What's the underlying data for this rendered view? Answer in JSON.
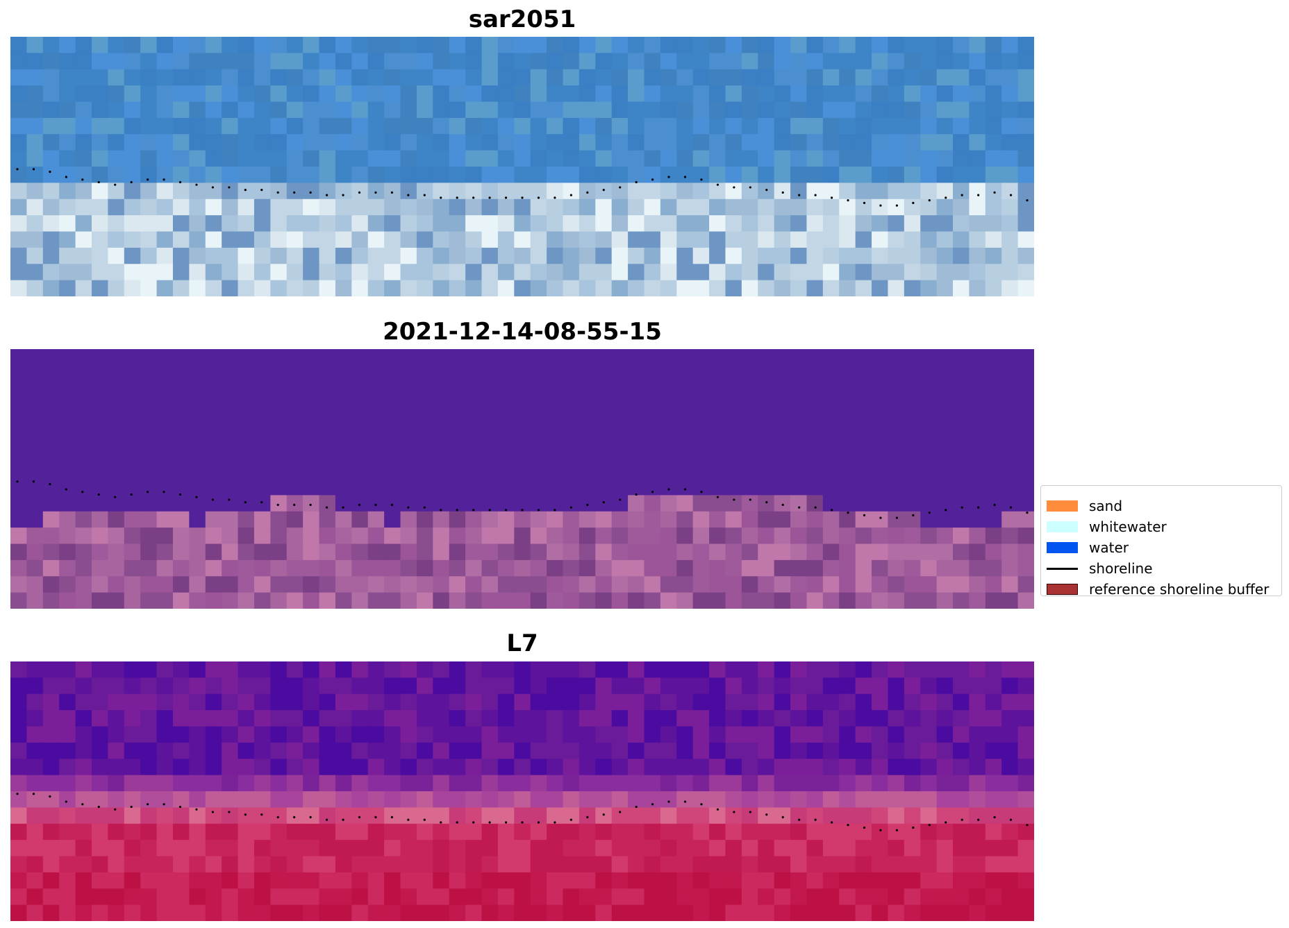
{
  "figure": {
    "panels": [
      {
        "title": "sar2051",
        "kind": "rgb"
      },
      {
        "title": "2021-12-14-08-55-15",
        "kind": "classified"
      },
      {
        "title": "L7",
        "kind": "index"
      }
    ]
  },
  "legend": {
    "items": [
      {
        "label": "sand",
        "color": "#ff8c3a",
        "kind": "patch"
      },
      {
        "label": "whitewater",
        "color": "#ccffff",
        "kind": "patch"
      },
      {
        "label": "water",
        "color": "#0055f0",
        "kind": "patch"
      },
      {
        "label": "shoreline",
        "color": "#000000",
        "kind": "line"
      },
      {
        "label": "reference shoreline buffer",
        "color": "#a83232",
        "kind": "patch"
      }
    ]
  },
  "chart_data": {
    "type": "heatmap",
    "grid_on": false,
    "axes_visible": false,
    "legend_placement": "center-right",
    "shoreline_style": "dotted",
    "shoreline_color": "#000000",
    "shoreline_y_fraction": [
      0.51,
      0.51,
      0.52,
      0.54,
      0.55,
      0.56,
      0.57,
      0.56,
      0.55,
      0.55,
      0.56,
      0.57,
      0.58,
      0.58,
      0.59,
      0.59,
      0.6,
      0.6,
      0.6,
      0.61,
      0.61,
      0.6,
      0.6,
      0.6,
      0.61,
      0.61,
      0.62,
      0.62,
      0.62,
      0.62,
      0.62,
      0.62,
      0.62,
      0.62,
      0.61,
      0.6,
      0.59,
      0.58,
      0.56,
      0.55,
      0.54,
      0.54,
      0.55,
      0.57,
      0.58,
      0.58,
      0.59,
      0.6,
      0.61,
      0.61,
      0.62,
      0.63,
      0.64,
      0.65,
      0.65,
      0.64,
      0.63,
      0.62,
      0.61,
      0.61,
      0.6,
      0.61,
      0.63
    ],
    "panels": [
      {
        "title": "sar2051",
        "colormap": "true-color",
        "land_start_fraction": 0.56,
        "water_colors": [
          "#3d85c6",
          "#4a90d9",
          "#3b7fc4",
          "#5a9ccc",
          "#4b8fd0",
          "#3f82bf"
        ],
        "land_colors": [
          "#a9c4dd",
          "#c3d6e6",
          "#8aaed0",
          "#dbe8f0",
          "#e8f4f8",
          "#9fbbd6",
          "#b7cfe1",
          "#6e96c4"
        ]
      },
      {
        "title": "2021-12-14-08-55-15",
        "colormap": "classification",
        "water_color": "#53229a",
        "land_step_rows": [
          11,
          11,
          10,
          10,
          10,
          10,
          10,
          10,
          10,
          10,
          10,
          11,
          10,
          10,
          10,
          10,
          9,
          9,
          9,
          9,
          10,
          10,
          10,
          11,
          10,
          10,
          10,
          10,
          10,
          10,
          10,
          10,
          10,
          10,
          10,
          10,
          10,
          10,
          9,
          9,
          9,
          9,
          9,
          9,
          9,
          9,
          9,
          9,
          9,
          9,
          10,
          10,
          10,
          10,
          10,
          10,
          11,
          11,
          11,
          11,
          11,
          10,
          10
        ],
        "land_colors": [
          "#8a4d90",
          "#9b5598",
          "#a8649f",
          "#b16ea5",
          "#7b3f86",
          "#c077a9",
          "#9f5a9b"
        ]
      },
      {
        "title": "L7",
        "colormap": "plasma-like",
        "rows": 16,
        "row_colors": [
          [
            "#6a1b9a",
            "#5d139b",
            "#7a1f99",
            "#4b0aa0"
          ],
          [
            "#6a1b9a",
            "#5d139b",
            "#7a1f99",
            "#4b0aa0"
          ],
          [
            "#6a1b9a",
            "#5d139b",
            "#7a1f99",
            "#4b0aa0"
          ],
          [
            "#6a1b9a",
            "#5d139b",
            "#7a1f99",
            "#4b0aa0"
          ],
          [
            "#6a1b9a",
            "#5d139b",
            "#7a1f99",
            "#4b0aa0"
          ],
          [
            "#6a1b9a",
            "#5d139b",
            "#7a1f99",
            "#4b0aa0"
          ],
          [
            "#6a1b9a",
            "#5d139b",
            "#7a1f99",
            "#4b0aa0"
          ],
          [
            "#8a2d9e",
            "#7a2298",
            "#9c3a9a"
          ],
          [
            "#b14e9b",
            "#a8449c",
            "#c05c98"
          ],
          [
            "#d0457a",
            "#c63b78",
            "#d9698f"
          ],
          [
            "#c8245c",
            "#d23a6d",
            "#c11a52"
          ],
          [
            "#c8245c",
            "#d23a6d",
            "#c11a52"
          ],
          [
            "#c8245c",
            "#d23a6d",
            "#c11a52"
          ],
          [
            "#c2184d",
            "#cc2a5f",
            "#bd1045"
          ],
          [
            "#c2184d",
            "#cc2a5f",
            "#bd1045"
          ],
          [
            "#c2184d",
            "#cc2a5f",
            "#bd1045"
          ]
        ]
      }
    ]
  }
}
